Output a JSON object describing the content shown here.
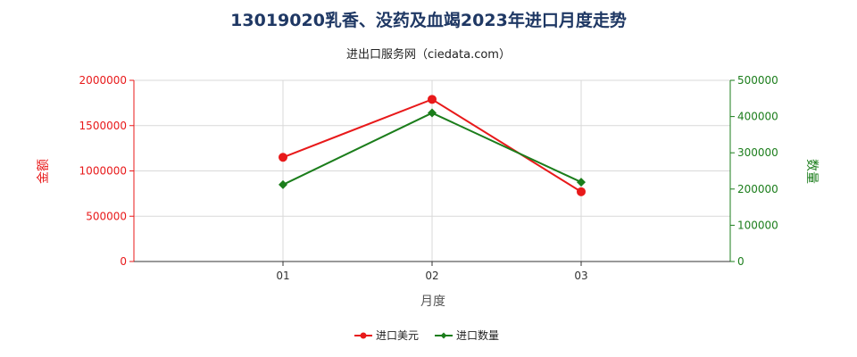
{
  "chart_data": {
    "type": "line",
    "title": "13019020乳香、没药及血竭2023年进口月度走势",
    "subtitle": "进出口服务网（ciedata.com）",
    "xlabel": "月度",
    "ylabel_left": "金额",
    "ylabel_right": "数量",
    "categories": [
      "01",
      "02",
      "03"
    ],
    "y_left": {
      "min": 0,
      "max": 2000000,
      "ticks": [
        "0",
        "500000",
        "1000000",
        "1500000",
        "2000000"
      ]
    },
    "y_right": {
      "min": 0,
      "max": 500000,
      "ticks": [
        "0",
        "100000",
        "200000",
        "300000",
        "400000",
        "500000"
      ]
    },
    "grid": true,
    "legend_position": "bottom-center",
    "series": [
      {
        "name": "进口美元",
        "axis": "left",
        "color": "#e8191a",
        "marker": "circle",
        "values": [
          1150000,
          1790000,
          770000
        ]
      },
      {
        "name": "进口数量",
        "axis": "right",
        "color": "#1b7d1b",
        "marker": "diamond",
        "values": [
          212000,
          410000,
          219000
        ]
      }
    ],
    "colors": {
      "left_axis": "#e8191a",
      "right_axis": "#1b7d1b",
      "grid": "#d9d9d9"
    }
  }
}
